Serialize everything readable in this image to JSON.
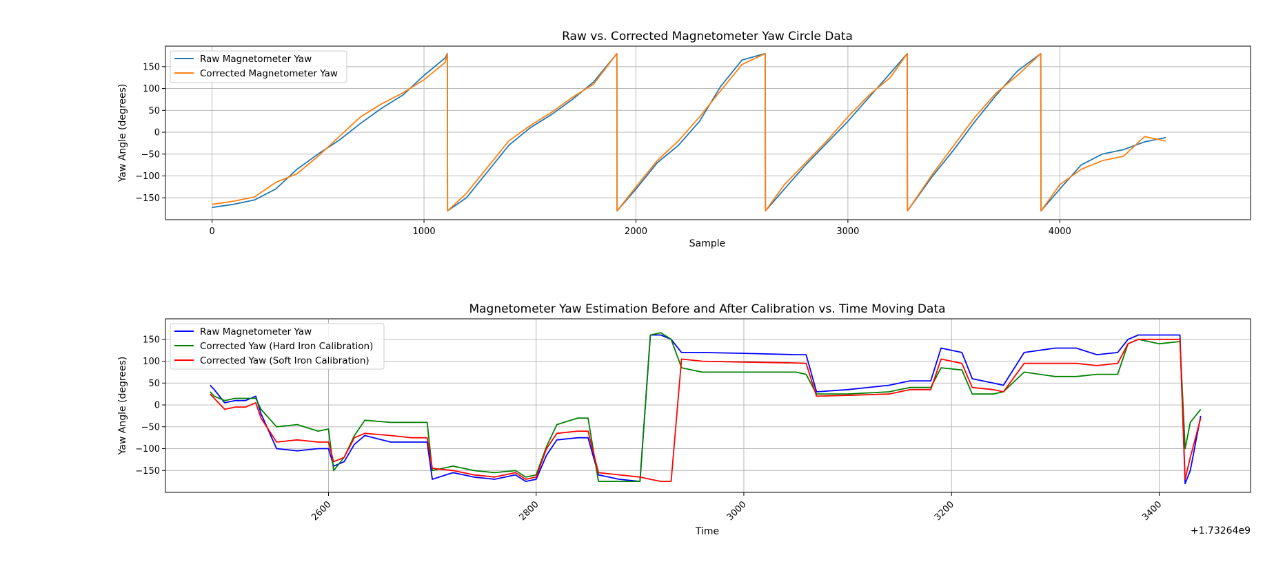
{
  "chart_data": [
    {
      "type": "line",
      "title": "Raw vs. Corrected Magnetometer Yaw Circle Data",
      "xlabel": "Sample",
      "ylabel": "Yaw Angle (degrees)",
      "xlim": [
        -220,
        4900
      ],
      "ylim": [
        -200,
        197
      ],
      "xticks": [
        0,
        1000,
        2000,
        3000,
        4000
      ],
      "xtick_labels": [
        "0",
        "1000",
        "2000",
        "3000",
        "4000"
      ],
      "yticks": [
        -150,
        -100,
        -50,
        0,
        50,
        100,
        150
      ],
      "ytick_labels": [
        "−150",
        "−100",
        "−50",
        "0",
        "50",
        "100",
        "150"
      ],
      "grid": true,
      "legend_loc": "upper-left",
      "series": [
        {
          "name": "Raw Magnetometer Yaw",
          "color": "#1f77b4",
          "x": [
            0,
            100,
            200,
            300,
            400,
            500,
            600,
            700,
            800,
            900,
            1000,
            1100,
            1110,
            1111,
            1200,
            1300,
            1400,
            1500,
            1600,
            1700,
            1800,
            1910,
            1911,
            2000,
            2100,
            2200,
            2300,
            2400,
            2500,
            2610,
            2611,
            2700,
            2800,
            2900,
            3000,
            3100,
            3200,
            3280,
            3281,
            3400,
            3500,
            3600,
            3700,
            3800,
            3910,
            3911,
            4000,
            4100,
            4200,
            4300,
            4400,
            4500
          ],
          "y": [
            -172,
            -165,
            -155,
            -130,
            -85,
            -50,
            -18,
            20,
            55,
            85,
            130,
            170,
            180,
            -180,
            -150,
            -90,
            -30,
            10,
            40,
            75,
            115,
            180,
            -180,
            -130,
            -70,
            -30,
            25,
            105,
            165,
            180,
            -180,
            -130,
            -75,
            -25,
            25,
            80,
            135,
            180,
            -180,
            -100,
            -40,
            25,
            85,
            140,
            180,
            -180,
            -130,
            -75,
            -50,
            -40,
            -22,
            -12
          ]
        },
        {
          "name": "Corrected Magnetometer Yaw",
          "color": "#ff7f0e",
          "x": [
            0,
            100,
            200,
            300,
            400,
            500,
            600,
            700,
            800,
            900,
            1000,
            1100,
            1110,
            1111,
            1200,
            1300,
            1400,
            1500,
            1600,
            1700,
            1800,
            1910,
            1911,
            2000,
            2100,
            2200,
            2300,
            2400,
            2500,
            2610,
            2611,
            2700,
            2800,
            2900,
            3000,
            3100,
            3200,
            3280,
            3281,
            3400,
            3500,
            3600,
            3700,
            3800,
            3910,
            3911,
            4000,
            4100,
            4200,
            4300,
            4400,
            4500
          ],
          "y": [
            -165,
            -158,
            -148,
            -115,
            -95,
            -55,
            -10,
            35,
            65,
            90,
            120,
            160,
            180,
            -180,
            -140,
            -80,
            -20,
            15,
            45,
            80,
            110,
            180,
            -180,
            -125,
            -65,
            -20,
            35,
            95,
            155,
            180,
            -180,
            -120,
            -70,
            -20,
            35,
            85,
            125,
            180,
            -180,
            -95,
            -30,
            35,
            90,
            130,
            180,
            -180,
            -120,
            -85,
            -65,
            -55,
            -10,
            -20
          ]
        }
      ]
    },
    {
      "type": "line",
      "title": "Magnetometer Yaw Estimation Before and After Calibration vs. Time Moving Data",
      "xlabel": "Time",
      "ylabel": "Yaw Angle (degrees)",
      "offset_label": "+1.73264e9",
      "xlim": [
        2443,
        3488
      ],
      "ylim": [
        -200,
        197
      ],
      "xticks": [
        2600,
        2800,
        3000,
        3200,
        3400
      ],
      "xtick_labels": [
        "2600",
        "2800",
        "3000",
        "3200",
        "3400"
      ],
      "yticks": [
        -150,
        -100,
        -50,
        0,
        50,
        100,
        150
      ],
      "ytick_labels": [
        "−150",
        "−100",
        "−50",
        "0",
        "50",
        "100",
        "150"
      ],
      "grid": true,
      "legend_loc": "upper-left",
      "series": [
        {
          "name": "Raw Magnetometer Yaw",
          "color": "#0000ff",
          "x": [
            2486,
            2490,
            2500,
            2510,
            2520,
            2530,
            2535,
            2550,
            2570,
            2590,
            2600,
            2605,
            2615,
            2625,
            2635,
            2660,
            2680,
            2695,
            2700,
            2720,
            2740,
            2760,
            2780,
            2790,
            2800,
            2810,
            2820,
            2840,
            2850,
            2860,
            2880,
            2900,
            2910,
            2920,
            2930,
            2940,
            2960,
            3000,
            3050,
            3060,
            3070,
            3100,
            3140,
            3150,
            3160,
            3180,
            3190,
            3210,
            3220,
            3240,
            3250,
            3270,
            3300,
            3320,
            3340,
            3360,
            3370,
            3380,
            3400,
            3420,
            3425,
            3430,
            3440
          ],
          "y": [
            45,
            35,
            5,
            10,
            10,
            20,
            -20,
            -100,
            -105,
            -100,
            -100,
            -140,
            -130,
            -90,
            -70,
            -85,
            -85,
            -85,
            -170,
            -155,
            -165,
            -170,
            -160,
            -175,
            -170,
            -115,
            -80,
            -75,
            -75,
            -160,
            -170,
            -175,
            160,
            160,
            150,
            120,
            120,
            118,
            115,
            115,
            30,
            35,
            45,
            50,
            55,
            55,
            130,
            120,
            60,
            50,
            45,
            120,
            130,
            130,
            115,
            120,
            150,
            160,
            160,
            160,
            -180,
            -150,
            -25
          ]
        },
        {
          "name": "Corrected Yaw (Hard Iron Calibration)",
          "color": "#008000",
          "x": [
            2486,
            2490,
            2500,
            2510,
            2520,
            2530,
            2535,
            2550,
            2570,
            2590,
            2600,
            2605,
            2615,
            2625,
            2635,
            2660,
            2680,
            2695,
            2700,
            2720,
            2740,
            2760,
            2780,
            2790,
            2800,
            2810,
            2820,
            2840,
            2850,
            2860,
            2880,
            2900,
            2910,
            2920,
            2930,
            2940,
            2960,
            3000,
            3050,
            3060,
            3070,
            3100,
            3140,
            3150,
            3160,
            3180,
            3190,
            3210,
            3220,
            3240,
            3250,
            3270,
            3300,
            3320,
            3340,
            3360,
            3370,
            3380,
            3400,
            3420,
            3425,
            3430,
            3440
          ],
          "y": [
            30,
            20,
            10,
            15,
            15,
            15,
            -10,
            -50,
            -45,
            -60,
            -55,
            -150,
            -120,
            -70,
            -35,
            -40,
            -40,
            -40,
            -150,
            -140,
            -150,
            -155,
            -150,
            -165,
            -160,
            -95,
            -45,
            -30,
            -30,
            -175,
            -175,
            -175,
            160,
            165,
            150,
            85,
            75,
            75,
            75,
            70,
            25,
            25,
            30,
            35,
            40,
            40,
            85,
            80,
            25,
            25,
            30,
            75,
            65,
            65,
            70,
            70,
            140,
            150,
            140,
            145,
            -100,
            -40,
            -10
          ]
        },
        {
          "name": "Corrected Yaw (Soft Iron Calibration)",
          "color": "#ff0000",
          "x": [
            2486,
            2490,
            2500,
            2510,
            2520,
            2530,
            2535,
            2550,
            2570,
            2590,
            2600,
            2605,
            2615,
            2625,
            2635,
            2660,
            2680,
            2695,
            2700,
            2720,
            2740,
            2760,
            2780,
            2790,
            2800,
            2810,
            2820,
            2840,
            2850,
            2860,
            2880,
            2900,
            2910,
            2920,
            2930,
            2940,
            2960,
            3000,
            3050,
            3060,
            3070,
            3100,
            3140,
            3150,
            3160,
            3180,
            3190,
            3210,
            3220,
            3240,
            3250,
            3270,
            3300,
            3320,
            3340,
            3360,
            3370,
            3380,
            3400,
            3420,
            3425,
            3430,
            3440
          ],
          "y": [
            25,
            15,
            -10,
            -5,
            -5,
            5,
            -30,
            -85,
            -80,
            -85,
            -85,
            -130,
            -120,
            -75,
            -65,
            -70,
            -75,
            -75,
            -145,
            -150,
            -160,
            -165,
            -155,
            -170,
            -165,
            -100,
            -65,
            -60,
            -60,
            -155,
            -160,
            -165,
            -170,
            -175,
            -175,
            105,
            100,
            98,
            96,
            95,
            20,
            22,
            25,
            30,
            35,
            35,
            105,
            95,
            40,
            35,
            30,
            95,
            95,
            95,
            90,
            95,
            140,
            150,
            150,
            150,
            -170,
            -120,
            -30
          ]
        }
      ]
    }
  ]
}
